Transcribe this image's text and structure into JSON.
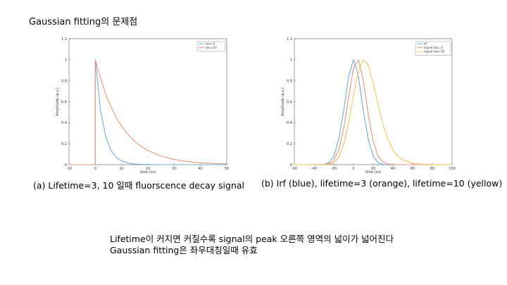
{
  "slide": {
    "title": "Gaussian fitting의 문제점",
    "caption_a": "(a) Lifetime=3, 10 일때 fluorscence decay signal",
    "caption_b": "(b) Irf (blue), lifetime=3 (orange), lifetime=10 (yellow)",
    "note_line1": "Lifetime이 커지면 커질수록 signal의 peak 오른쪽 영역의 넓이가 넓어진다",
    "note_line2": "Gaussian fitting은 좌우대칭일때 유효"
  },
  "chart_data": [
    {
      "type": "line",
      "title": "",
      "xlabel": "time (ns)",
      "ylabel": "Amplitude (a.u.)",
      "xlim": [
        -10,
        50
      ],
      "ylim": [
        0,
        1.2
      ],
      "xticks": [
        -10,
        0,
        10,
        20,
        30,
        40,
        50
      ],
      "yticks": [
        0,
        0.2,
        0.4,
        0.6,
        0.8,
        1,
        1.2
      ],
      "legend_position": "top-right",
      "grid": false,
      "x": [
        -10,
        -5,
        0,
        0,
        2,
        4,
        6,
        8,
        10,
        12,
        14,
        16,
        18,
        20,
        25,
        30,
        35,
        40,
        45,
        50
      ],
      "series": [
        {
          "name": "tau=3",
          "color": "#6baed6",
          "values": [
            0,
            0,
            0,
            1,
            0.513,
            0.264,
            0.135,
            0.069,
            0.036,
            0.018,
            0.009,
            0.005,
            0.002,
            0.001,
            0,
            0,
            0,
            0,
            0,
            0
          ]
        },
        {
          "name": "tau=10",
          "color": "#e8967a",
          "values": [
            0,
            0,
            0,
            1,
            0.819,
            0.67,
            0.549,
            0.449,
            0.368,
            0.301,
            0.247,
            0.202,
            0.165,
            0.135,
            0.082,
            0.05,
            0.03,
            0.018,
            0.011,
            0.007
          ]
        }
      ]
    },
    {
      "type": "line",
      "title": "",
      "xlabel": "time (ns)",
      "ylabel": "Amplitude (a.u.)",
      "xlim": [
        -60,
        100
      ],
      "ylim": [
        0,
        1.2
      ],
      "xticks": [
        -60,
        -40,
        -20,
        0,
        20,
        40,
        60,
        80,
        100
      ],
      "yticks": [
        0,
        0.2,
        0.4,
        0.6,
        0.8,
        1,
        1.2
      ],
      "legend_position": "top-right",
      "grid": false,
      "x": [
        -60,
        -40,
        -30,
        -25,
        -20,
        -15,
        -10,
        -5,
        0,
        5,
        10,
        15,
        20,
        25,
        30,
        35,
        40,
        45,
        50,
        60,
        70,
        80,
        100
      ],
      "series": [
        {
          "name": "irf",
          "color": "#6baed6",
          "values": [
            0,
            0,
            0.003,
            0.018,
            0.08,
            0.24,
            0.51,
            0.84,
            1,
            0.84,
            0.51,
            0.24,
            0.08,
            0.018,
            0.003,
            0,
            0,
            0,
            0,
            0,
            0,
            0,
            0
          ]
        },
        {
          "name": "signal tau=3",
          "color": "#e8967a",
          "values": [
            0,
            0,
            0.001,
            0.008,
            0.04,
            0.14,
            0.34,
            0.64,
            0.92,
            1,
            0.8,
            0.48,
            0.22,
            0.08,
            0.025,
            0.007,
            0.002,
            0,
            0,
            0,
            0,
            0,
            0
          ]
        },
        {
          "name": "signal tau=10",
          "color": "#f2c45a",
          "values": [
            0,
            0,
            0.001,
            0.004,
            0.02,
            0.07,
            0.19,
            0.4,
            0.66,
            0.89,
            1,
            0.95,
            0.78,
            0.57,
            0.38,
            0.24,
            0.14,
            0.08,
            0.045,
            0.013,
            0.004,
            0.001,
            0
          ]
        }
      ]
    }
  ]
}
